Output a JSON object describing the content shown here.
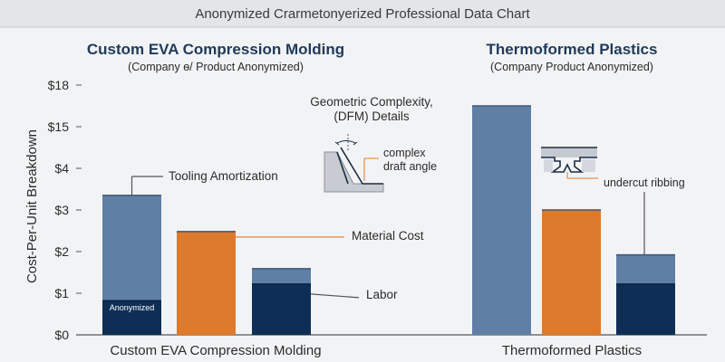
{
  "header": {
    "title": "Anonymized Crarmetonyerized Professional Data Chart"
  },
  "panels": [
    {
      "title": "Custom EVA Compression Molding",
      "subtitle": "(Company ѳ/ Product Anonymized)"
    },
    {
      "title": "Thermoformed Plastics",
      "subtitle": "(Company Product Anonymized)"
    }
  ],
  "inset": {
    "title_line1": "Geometric Complexity,",
    "title_line2": "(DFM) Details",
    "draft_line1": "complex",
    "draft_line2": "draft angle",
    "undercut": "undercut ribbing"
  },
  "chart_data": {
    "type": "bar",
    "ylabel": "Cost-Per-Unit Breakdown",
    "yticks": [
      "$0",
      "$1",
      "$2",
      "$3",
      "$4",
      "$15",
      "$18"
    ],
    "grid": false,
    "groups": [
      "Custom EVA Compression Molding",
      "Thermoformed Plastics"
    ],
    "bars": [
      {
        "group": "Custom EVA Compression Molding",
        "segments": [
          {
            "label": "Labor",
            "value": 0.82
          },
          {
            "label": "Tooling Amortization",
            "value": 2.53
          }
        ],
        "inner_label": "Anonymized"
      },
      {
        "group": "Custom EVA Compression Molding",
        "segments": [
          {
            "label": "Material Cost",
            "value": 2.48
          }
        ]
      },
      {
        "group": "Custom EVA Compression Molding",
        "segments": [
          {
            "label": "Labor",
            "value": 1.22
          },
          {
            "label": "Tooling Amortization",
            "value": 0.37
          }
        ]
      },
      {
        "group": "Thermoformed Plastics",
        "segments": [
          {
            "label": "Tooling Amortization",
            "value": 5.5
          }
        ]
      },
      {
        "group": "Thermoformed Plastics",
        "segments": [
          {
            "label": "Material Cost",
            "value": 3.0
          }
        ]
      },
      {
        "group": "Thermoformed Plastics",
        "segments": [
          {
            "label": "Labor",
            "value": 1.22
          },
          {
            "label": "Tooling Amortization",
            "value": 0.7
          }
        ]
      }
    ],
    "annotations": [
      "Tooling Amortization",
      "Material Cost",
      "Labor"
    ],
    "colors": {
      "tooling": "#5f7fa5",
      "material": "#dd7a2c",
      "labor": "#0e2e55"
    }
  }
}
